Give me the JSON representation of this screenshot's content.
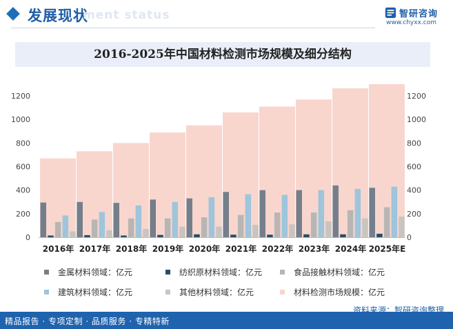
{
  "header": {
    "title": "发展现状",
    "ghost_text": "ment status"
  },
  "brand": {
    "name": "智研咨询",
    "url": "www.chyxx.com",
    "accent": "#1f5fa6"
  },
  "source": "资料来源：智研咨询整理",
  "footer": "精品报告 · 专项定制 · 品质服务 · 专精特新",
  "chart_data": {
    "type": "bar",
    "title": "2016-2025年中国材料检测市场规模及细分结构",
    "categories": [
      "2016年",
      "2017年",
      "2018年",
      "2019年",
      "2020年",
      "2021年",
      "2022年",
      "2023年",
      "2024年",
      "2025年E"
    ],
    "ylim": [
      0,
      1300
    ],
    "yticks": [
      0,
      200,
      400,
      600,
      800,
      1000,
      1200
    ],
    "grid": false,
    "legend_position": "bottom",
    "series": [
      {
        "name": "金属材料领域：亿元",
        "color": "#757f8b",
        "values": [
          295,
          300,
          292,
          320,
          330,
          385,
          400,
          400,
          440,
          420
        ]
      },
      {
        "name": "纺织原材料领域：亿元",
        "color": "#254f68",
        "values": [
          15,
          18,
          15,
          20,
          25,
          22,
          22,
          25,
          25,
          30
        ]
      },
      {
        "name": "食品接触材料领域：亿元",
        "color": "#b8b6b4",
        "values": [
          130,
          150,
          160,
          160,
          170,
          190,
          210,
          210,
          230,
          255
        ]
      },
      {
        "name": "建筑材料领域：亿元",
        "color": "#9ec5db",
        "values": [
          185,
          215,
          270,
          300,
          340,
          365,
          360,
          400,
          410,
          430
        ]
      },
      {
        "name": "其他材料领域：亿元",
        "color": "#cac4bf",
        "values": [
          50,
          60,
          70,
          90,
          90,
          105,
          110,
          135,
          160,
          175
        ]
      },
      {
        "name": "材料检测市场规模：亿元",
        "color": "#f8d6ce",
        "values": [
          670,
          730,
          800,
          890,
          950,
          1060,
          1110,
          1170,
          1265,
          1300
        ]
      }
    ]
  }
}
